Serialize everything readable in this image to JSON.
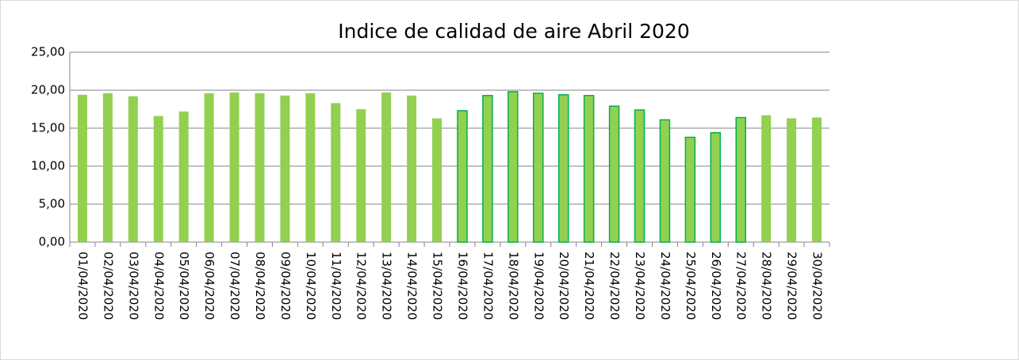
{
  "chart_data": {
    "type": "bar",
    "title": "Indice de calidad de aire Abril 2020",
    "categories": [
      "01/04/2020",
      "02/04/2020",
      "03/04/2020",
      "04/04/2020",
      "05/04/2020",
      "06/04/2020",
      "07/04/2020",
      "08/04/2020",
      "09/04/2020",
      "10/04/2020",
      "11/04/2020",
      "12/04/2020",
      "13/04/2020",
      "14/04/2020",
      "15/04/2020",
      "16/04/2020",
      "17/04/2020",
      "18/04/2020",
      "19/04/2020",
      "20/04/2020",
      "21/04/2020",
      "22/04/2020",
      "23/04/2020",
      "24/04/2020",
      "25/04/2020",
      "26/04/2020",
      "27/04/2020",
      "28/04/2020",
      "29/04/2020",
      "30/04/2020"
    ],
    "values": [
      19.4,
      19.6,
      19.2,
      16.6,
      17.2,
      19.6,
      19.7,
      19.6,
      19.3,
      19.6,
      18.3,
      17.5,
      19.7,
      19.3,
      16.3,
      17.3,
      19.3,
      19.8,
      19.6,
      19.4,
      19.3,
      17.9,
      17.4,
      16.1,
      13.8,
      14.4,
      16.4,
      16.7,
      16.3,
      16.4
    ],
    "color": "#92d050",
    "edge_colors": [
      null,
      null,
      null,
      null,
      null,
      null,
      null,
      null,
      null,
      null,
      null,
      null,
      null,
      null,
      null,
      "#00b050",
      "#00b050",
      "#00b050",
      "#00b050",
      "#00b050",
      "#00b050",
      "#00b050",
      "#00b050",
      "#00b050",
      "#00b050",
      "#00b050",
      "#00b050",
      null,
      null,
      null
    ],
    "ylim": [
      0,
      25
    ],
    "yticks": [
      {
        "value": 0,
        "label": "0,00"
      },
      {
        "value": 5,
        "label": "5,00"
      },
      {
        "value": 10,
        "label": "10,00"
      },
      {
        "value": 15,
        "label": "15,00"
      },
      {
        "value": 20,
        "label": "20,00"
      },
      {
        "value": 25,
        "label": "25,00"
      }
    ],
    "grid": true
  }
}
